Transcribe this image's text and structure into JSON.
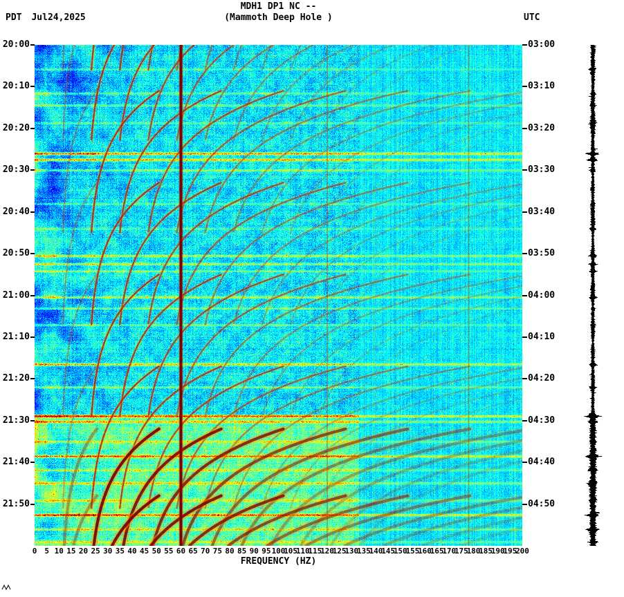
{
  "header": {
    "title_line1": "MDH1 DP1 NC --",
    "title_line2": "(Mammoth Deep Hole )",
    "timezone_left": "PDT",
    "date": "Jul24,2025",
    "timezone_right": "UTC"
  },
  "chart_data": {
    "type": "heatmap",
    "subtype": "seismic-spectrogram",
    "station": "MDH1 DP1 NC",
    "station_description": "Mammoth Deep Hole",
    "date": "Jul24,2025",
    "xlabel": "FREQUENCY (HZ)",
    "xlim_hz": [
      0,
      200
    ],
    "x_tick_labels": [
      "0",
      "5",
      "10",
      "15",
      "20",
      "25",
      "30",
      "35",
      "40",
      "45",
      "50",
      "55",
      "60",
      "65",
      "70",
      "75",
      "80",
      "85",
      "90",
      "95",
      "100",
      "105",
      "110",
      "115",
      "120",
      "125",
      "130",
      "135",
      "140",
      "145",
      "150",
      "155",
      "160",
      "165",
      "170",
      "175",
      "180",
      "185",
      "190",
      "195",
      "200"
    ],
    "duration_min": 120,
    "left_time_labels": [
      "20:00",
      "20:10",
      "20:20",
      "20:30",
      "20:40",
      "20:50",
      "21:00",
      "21:10",
      "21:20",
      "21:30",
      "21:40",
      "21:50"
    ],
    "right_time_labels": [
      "03:00",
      "03:10",
      "03:20",
      "03:30",
      "03:40",
      "03:50",
      "04:00",
      "04:10",
      "04:20",
      "04:30",
      "04:40",
      "04:50"
    ],
    "colormap": "jet",
    "colors": {
      "powerline": "#7a0002",
      "arc_core": "#b21608",
      "arc_core_strong": "#7a0000",
      "arc_halo": "#ffbe00",
      "background_cyan": "#00f0ff",
      "trace": "#000000"
    },
    "powerline_hz": 60,
    "faint_vertical_lines_hz": [
      120,
      178
    ],
    "harmonic_tremor": {
      "fundamental_start_hz": 25.5,
      "fundamental_asymptote_hz": 11,
      "decay_tau_min": 11,
      "harmonic_count": 11,
      "event_start_min": [
        -28,
        -11,
        11,
        33,
        55,
        77,
        92,
        108
      ],
      "strong_from_min": 92
    },
    "broadband_streaks": [
      {
        "t": 5.8,
        "s": 0.28
      },
      {
        "t": 11.6,
        "s": 0.3
      },
      {
        "t": 14.4,
        "s": 0.35
      },
      {
        "t": 18.7,
        "s": 0.25
      },
      {
        "t": 26.0,
        "s": 1.0
      },
      {
        "t": 27.4,
        "s": 0.85
      },
      {
        "t": 30.0,
        "s": 0.5
      },
      {
        "t": 38.0,
        "s": 0.3
      },
      {
        "t": 44.0,
        "s": 0.3
      },
      {
        "t": 50.5,
        "s": 0.6
      },
      {
        "t": 52.5,
        "s": 0.55
      },
      {
        "t": 54.2,
        "s": 0.4
      },
      {
        "t": 60.4,
        "s": 0.55
      },
      {
        "t": 63.0,
        "s": 0.35
      },
      {
        "t": 67.0,
        "s": 0.35
      },
      {
        "t": 76.5,
        "s": 0.85
      },
      {
        "t": 82.0,
        "s": 0.35
      },
      {
        "t": 88.8,
        "s": 1.0
      },
      {
        "t": 90.2,
        "s": 0.6
      },
      {
        "t": 95.0,
        "s": 0.45
      },
      {
        "t": 98.5,
        "s": 0.9
      },
      {
        "t": 101.8,
        "s": 0.4
      },
      {
        "t": 105.0,
        "s": 0.5
      },
      {
        "t": 109.0,
        "s": 0.45
      },
      {
        "t": 112.5,
        "s": 0.95
      },
      {
        "t": 116.0,
        "s": 0.5
      },
      {
        "t": 119.0,
        "s": 0.4
      }
    ],
    "right_trace": {
      "type": "seismogram",
      "color": "#000000"
    }
  }
}
